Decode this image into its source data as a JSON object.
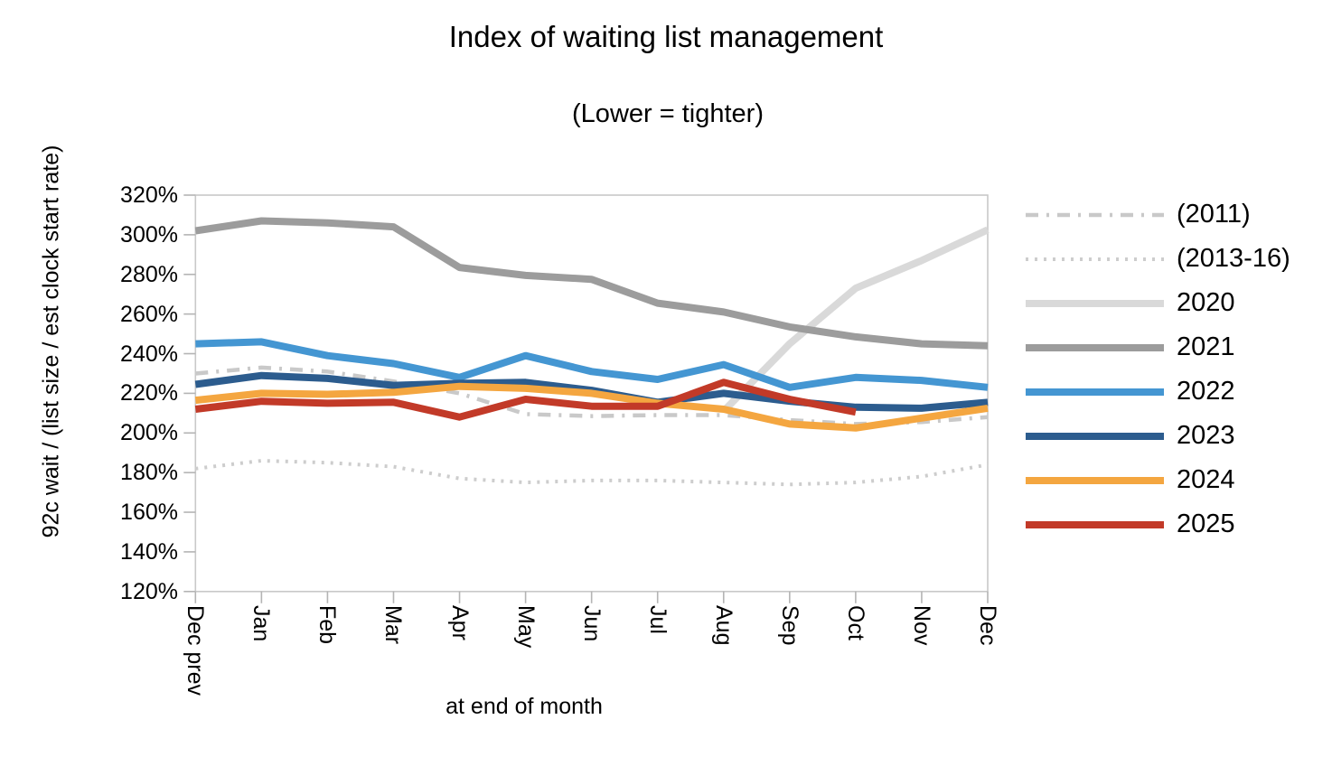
{
  "page": {
    "background": "#ffffff",
    "text_color": "#000000"
  },
  "chart_data": {
    "type": "line",
    "title": "Index of waiting list management",
    "subtitle": "(Lower = tighter)",
    "xlabel": "at end of month",
    "ylabel": "92c wait / (list size / est clock start rate)",
    "categories": [
      "Dec prev",
      "Jan",
      "Feb",
      "Mar",
      "Apr",
      "May",
      "Jun",
      "Jul",
      "Aug",
      "Sep",
      "Oct",
      "Nov",
      "Dec"
    ],
    "y_axis": {
      "min": 120,
      "max": 320,
      "step": 20,
      "tick_suffix": "%"
    },
    "grid": false,
    "legend_position": "right",
    "axis_color": "#c8c8c8",
    "tick_color": "#b4b4b4",
    "series": [
      {
        "name": "(2011)",
        "color": "#c9c9c9",
        "style": "dashdot",
        "width": 4.5,
        "values": [
          230,
          233,
          231,
          226,
          220,
          209.5,
          208.5,
          209,
          209,
          206.5,
          204.5,
          205.5,
          208
        ]
      },
      {
        "name": "(2013-16)",
        "color": "#cdcdcd",
        "style": "dotted",
        "width": 4,
        "values": [
          182,
          186,
          185,
          183,
          177,
          175,
          176,
          176,
          175,
          174,
          175,
          178,
          184
        ]
      },
      {
        "name": "2020",
        "color": "#d9d9d9",
        "style": "solid",
        "width": 8,
        "values": [
          null,
          null,
          null,
          null,
          null,
          null,
          null,
          null,
          211,
          245,
          273,
          287,
          302.5
        ]
      },
      {
        "name": "2021",
        "color": "#9c9c9c",
        "style": "solid",
        "width": 8,
        "values": [
          302,
          307,
          306,
          304,
          283.5,
          279.5,
          277.5,
          265.5,
          261,
          253.5,
          248.5,
          245,
          244
        ]
      },
      {
        "name": "2022",
        "color": "#4496d2",
        "style": "solid",
        "width": 8,
        "values": [
          245,
          246,
          239,
          235,
          228,
          239,
          231,
          227,
          234.5,
          223,
          228,
          226.5,
          223
        ]
      },
      {
        "name": "2023",
        "color": "#2c5c8e",
        "style": "solid",
        "width": 8,
        "values": [
          224.5,
          229,
          227.5,
          224,
          225,
          225.5,
          221.5,
          215.5,
          220,
          216,
          213,
          212.5,
          215.5
        ]
      },
      {
        "name": "2024",
        "color": "#f4a640",
        "style": "solid",
        "width": 8,
        "values": [
          216.5,
          220,
          219.5,
          220.5,
          223.5,
          222.5,
          220,
          215,
          212,
          204.5,
          202.5,
          207.5,
          212.5
        ]
      },
      {
        "name": "2025",
        "color": "#c23a28",
        "style": "solid",
        "width": 8,
        "values": [
          212,
          216,
          215,
          215.5,
          208,
          217,
          213.5,
          213.5,
          225.5,
          217,
          210.5,
          null,
          null
        ]
      }
    ]
  }
}
